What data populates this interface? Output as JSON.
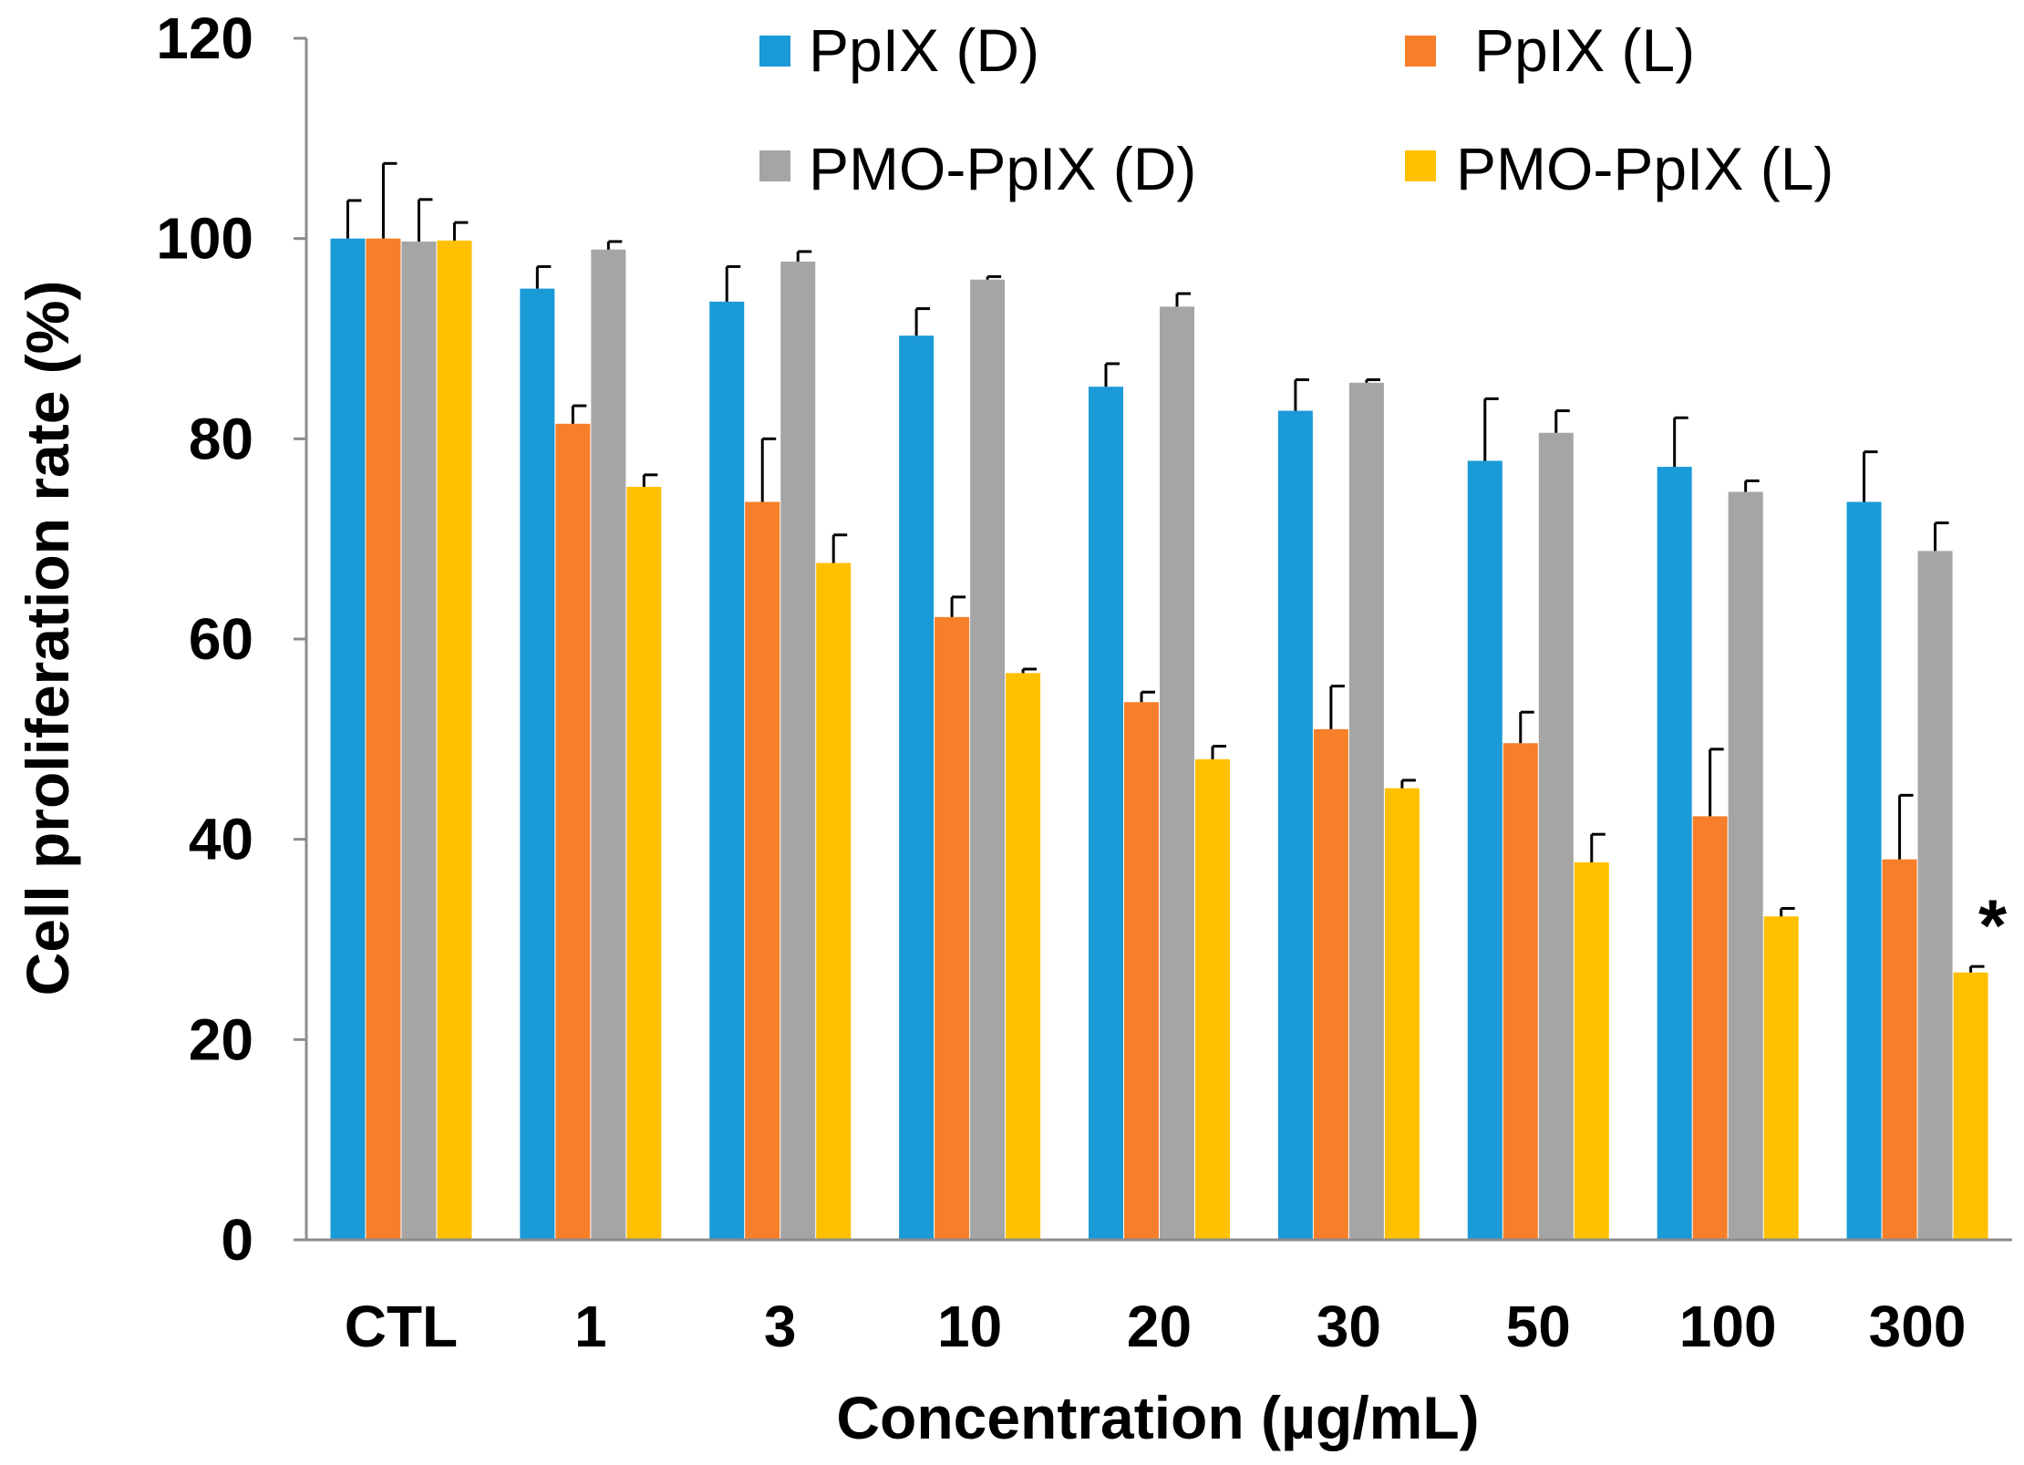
{
  "chart_data": {
    "type": "bar",
    "title": "",
    "xlabel": "Concentration (µg/mL)",
    "ylabel": "Cell proliferation rate (%)",
    "ylim": [
      0,
      120
    ],
    "yticks": [
      "0",
      "20",
      "40",
      "60",
      "80",
      "100",
      "120"
    ],
    "categories": [
      "CTL",
      "1",
      "3",
      "10",
      "20",
      "30",
      "50",
      "100",
      "300"
    ],
    "series": [
      {
        "name": "PpIX (D)",
        "color": "#1A9AD6",
        "values": [
          100,
          95,
          93.7,
          90.3,
          85.2,
          82.8,
          77.8,
          77.2,
          73.7
        ],
        "errors": [
          3.8,
          2.2,
          3.5,
          2.7,
          2.3,
          3.1,
          6.2,
          4.9,
          5.0
        ]
      },
      {
        "name": "PpIX (L)",
        "color": "#F77F2A",
        "values": [
          100,
          81.5,
          73.7,
          62.2,
          53.7,
          51.0,
          49.6,
          42.3,
          38.0
        ],
        "errors": [
          7.5,
          1.8,
          6.3,
          2.0,
          1.0,
          4.3,
          3.1,
          6.7,
          6.4
        ]
      },
      {
        "name": "PMO-PpIX (D)",
        "color": "#A5A5A5",
        "values": [
          99.7,
          98.9,
          97.7,
          95.9,
          93.2,
          85.6,
          80.6,
          74.7,
          68.8
        ],
        "errors": [
          4.2,
          0.8,
          1.0,
          0.3,
          1.3,
          0.3,
          2.2,
          1.1,
          2.8
        ]
      },
      {
        "name": "PMO-PpIX (L)",
        "color": "#FFC000",
        "values": [
          99.8,
          75.2,
          67.6,
          56.6,
          48.0,
          45.1,
          37.7,
          32.3,
          26.7
        ],
        "errors": [
          1.8,
          1.2,
          2.8,
          0.4,
          1.3,
          0.8,
          2.8,
          0.8,
          0.6
        ]
      }
    ],
    "legend": {
      "position": "top",
      "layout": "two-columns"
    },
    "annotations": [
      {
        "text": "*",
        "category": "300",
        "series": "PMO-PpIX (L)"
      }
    ],
    "grid": false
  }
}
